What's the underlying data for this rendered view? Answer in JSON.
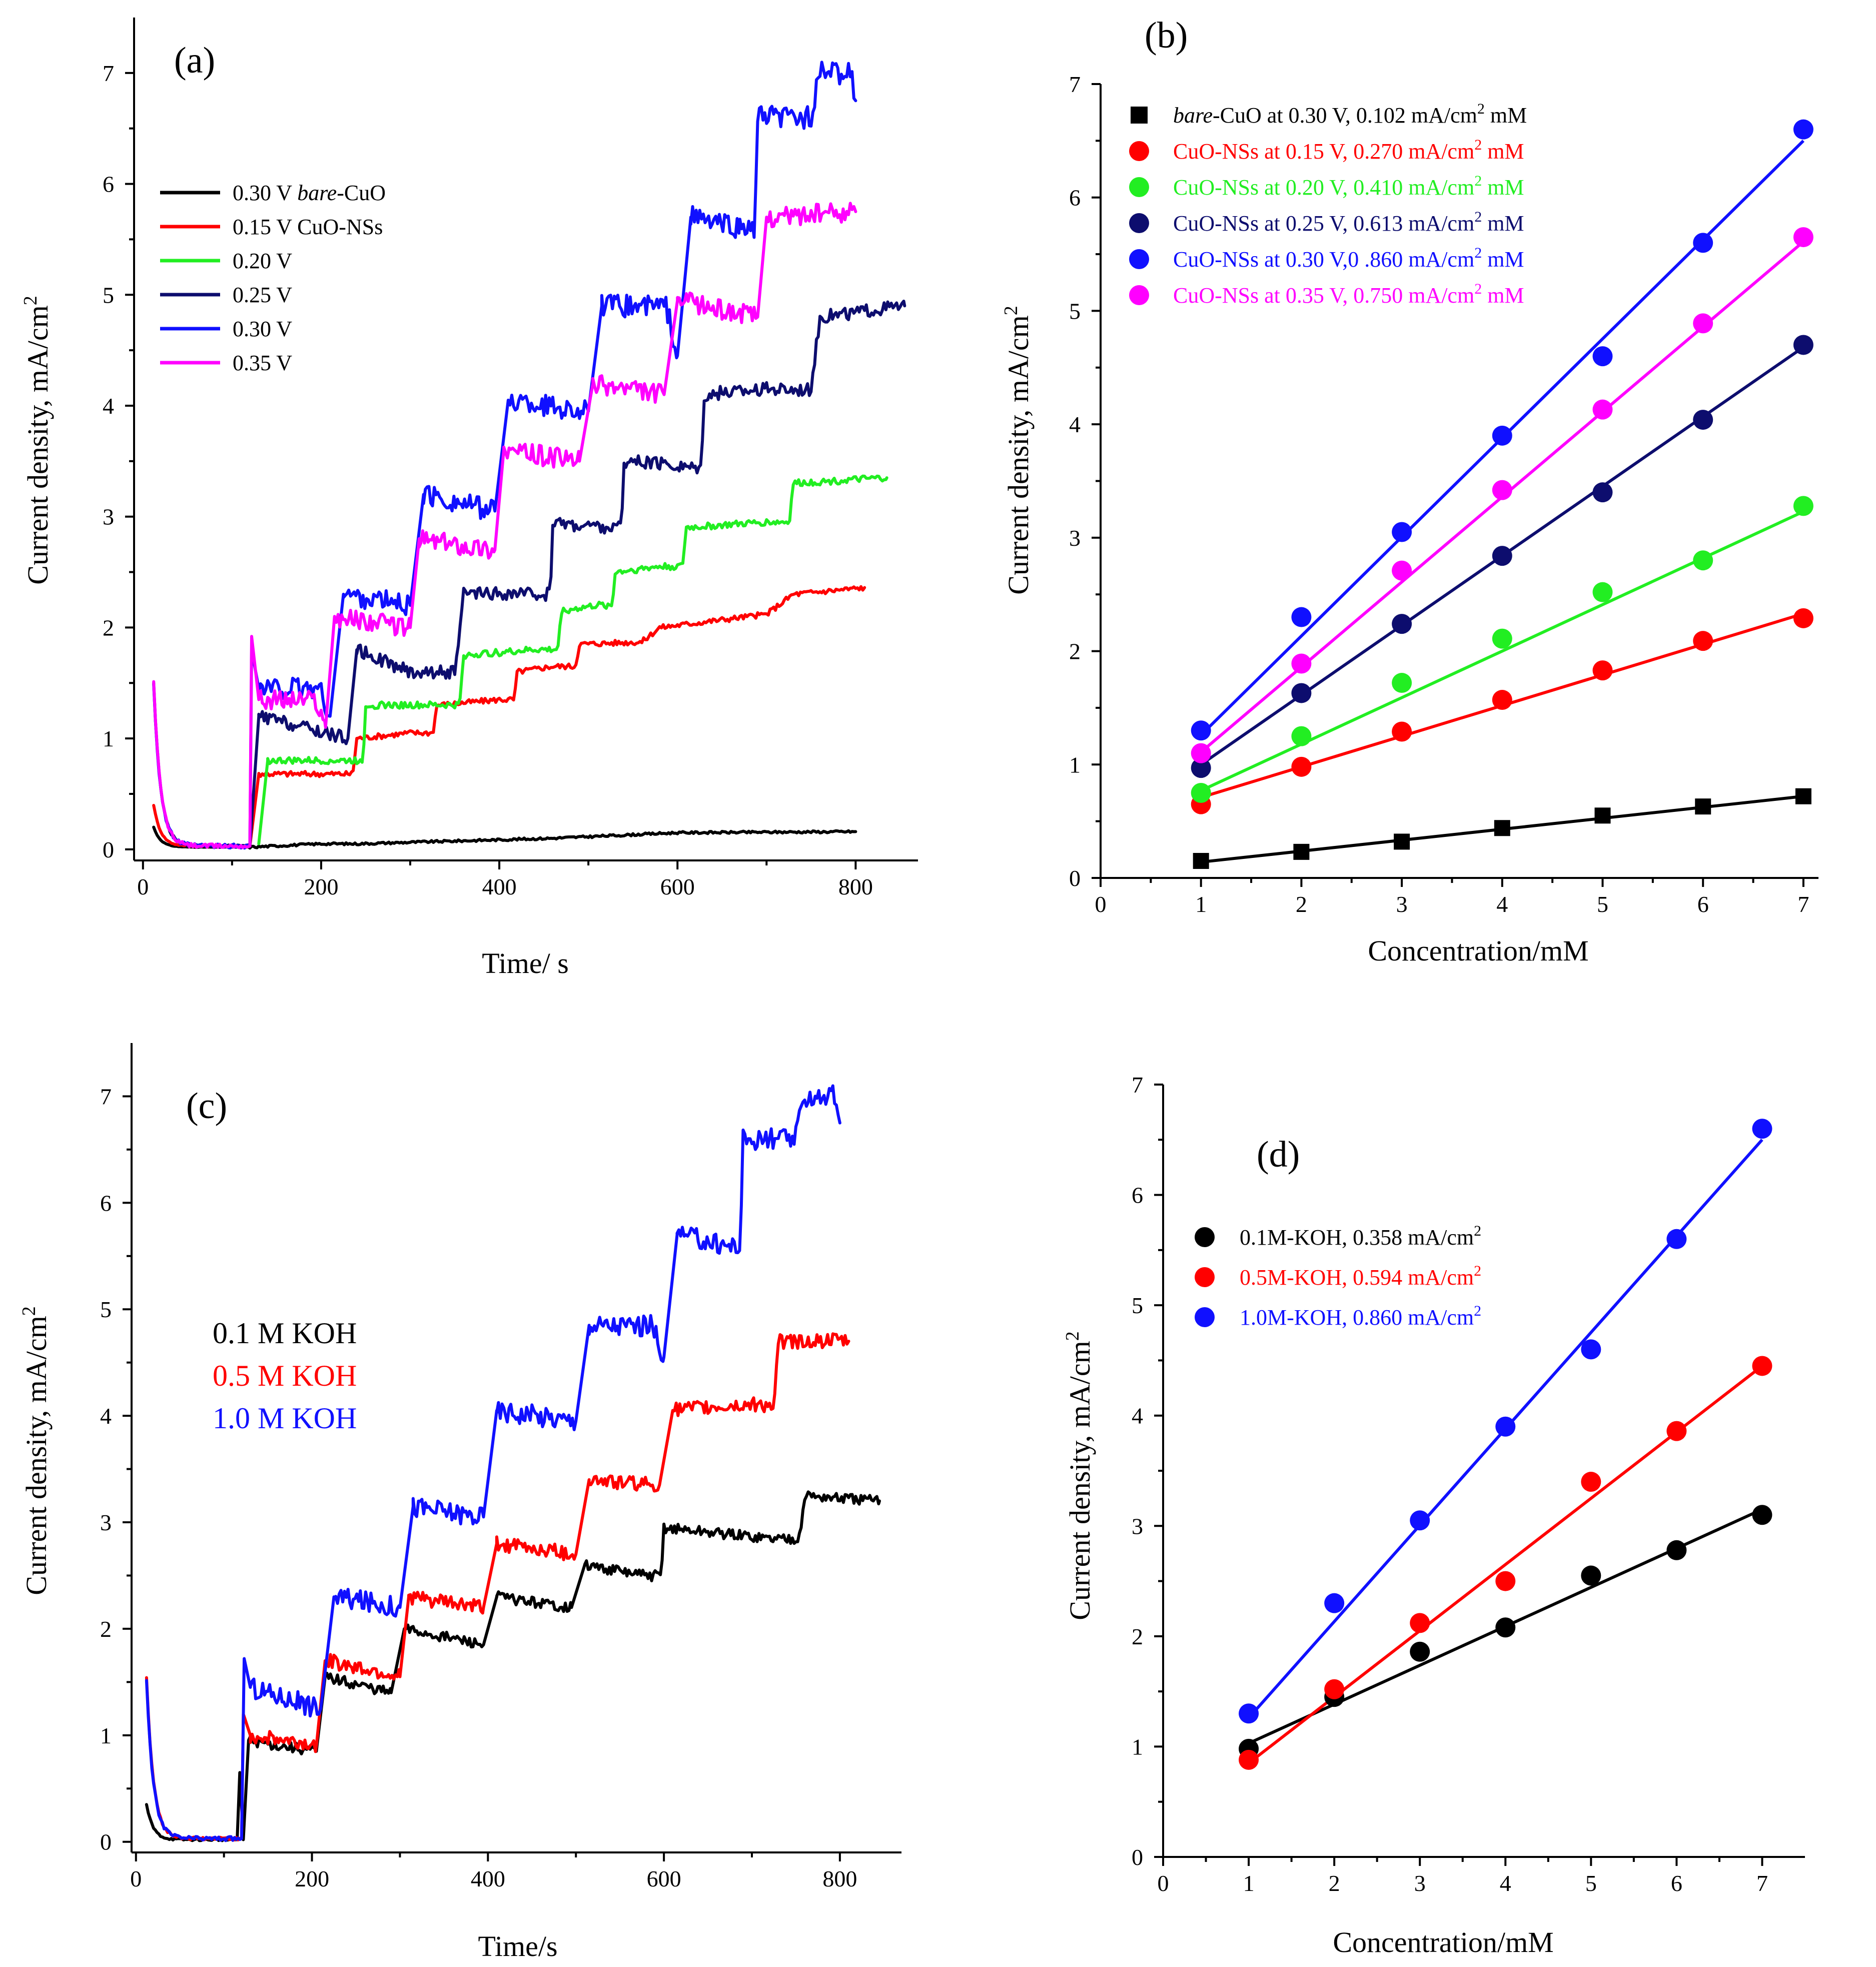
{
  "colors": {
    "black": "#000000",
    "red": "#ff0000",
    "green": "#22ee22",
    "navy": "#0d0d6e",
    "blue": "#1010ff",
    "magenta": "#ff00ff"
  },
  "chart_data": [
    {
      "panel": "(a)",
      "type": "line",
      "xlabel": "Time/ s",
      "ylabel": "Current density, mA/cm",
      "ylabel_sup": "2",
      "xlim": [
        -10,
        870
      ],
      "ylim": [
        -0.1,
        7.5
      ],
      "xticks": [
        0,
        200,
        400,
        600,
        800
      ],
      "yticks": [
        0,
        1,
        2,
        3,
        4,
        5,
        6,
        7
      ],
      "legend_position": "upper-left",
      "legend": [
        {
          "parts": [
            "0.30 V ",
            "bare",
            "-CuO"
          ],
          "color": "black"
        },
        {
          "parts": [
            "0.15 V CuO-NSs",
            "",
            ""
          ],
          "color": "red"
        },
        {
          "parts": [
            "0.20 V",
            "",
            ""
          ],
          "color": "green"
        },
        {
          "parts": [
            "0.25 V",
            "",
            ""
          ],
          "color": "navy"
        },
        {
          "parts": [
            "0.30 V",
            "",
            ""
          ],
          "color": "blue"
        },
        {
          "parts": [
            "0.35 V",
            "",
            ""
          ],
          "color": "magenta"
        }
      ],
      "series": [
        {
          "name": "0.30 V bare-CuO",
          "color": "black",
          "t_start": 12,
          "peak": 0.2,
          "base": 0.02,
          "t_end": 800,
          "noise": 0.01,
          "steps": [
            [
              120,
              0.02
            ],
            [
              200,
              0.05
            ],
            [
              240,
              0.05
            ],
            [
              460,
              0.1
            ],
            [
              600,
              0.15
            ],
            [
              800,
              0.16
            ]
          ]
        },
        {
          "name": "0.15 V CuO-NSs",
          "color": "red",
          "t_start": 12,
          "peak": 0.4,
          "base": 0.03,
          "t_end": 810,
          "noise": 0.025,
          "steps": [
            [
              120,
              0.03
            ],
            [
              130,
              0.68
            ],
            [
              210,
              0.68
            ],
            [
              240,
              1.0
            ],
            [
              300,
              1.05
            ],
            [
              330,
              1.3
            ],
            [
              400,
              1.35
            ],
            [
              420,
              1.6
            ],
            [
              460,
              1.65
            ],
            [
              490,
              1.85
            ],
            [
              560,
              1.87
            ],
            [
              580,
              2.0
            ],
            [
              700,
              2.12
            ],
            [
              730,
              2.3
            ],
            [
              810,
              2.36
            ]
          ]
        },
        {
          "name": "0.20 V",
          "color": "green",
          "t_start": 130,
          "peak": 0.05,
          "base": 0.03,
          "t_end": 835,
          "noise": 0.03,
          "steps": [
            [
              130,
              0.05
            ],
            [
              140,
              0.8
            ],
            [
              230,
              0.8
            ],
            [
              250,
              1.3
            ],
            [
              330,
              1.3
            ],
            [
              360,
              1.75
            ],
            [
              440,
              1.8
            ],
            [
              470,
              2.15
            ],
            [
              510,
              2.2
            ],
            [
              530,
              2.5
            ],
            [
              580,
              2.55
            ],
            [
              610,
              2.9
            ],
            [
              700,
              2.95
            ],
            [
              730,
              3.3
            ],
            [
              835,
              3.35
            ]
          ]
        },
        {
          "name": "0.25 V",
          "color": "navy",
          "t_start": 12,
          "peak": 1.5,
          "base": 0.03,
          "t_end": 855,
          "noise": 0.06,
          "steps": [
            [
              120,
              0.03
            ],
            [
              130,
              1.2
            ],
            [
              230,
              1.0
            ],
            [
              240,
              1.8
            ],
            [
              300,
              1.6
            ],
            [
              360,
              2.3
            ],
            [
              440,
              2.3
            ],
            [
              460,
              2.95
            ],
            [
              520,
              2.9
            ],
            [
              540,
              3.5
            ],
            [
              610,
              3.45
            ],
            [
              630,
              4.1
            ],
            [
              690,
              4.15
            ],
            [
              760,
              4.8
            ],
            [
              855,
              4.9
            ]
          ]
        },
        {
          "name": "0.30 V",
          "color": "blue",
          "t_start": 12,
          "peak": 1.5,
          "base": 0.03,
          "t_end": 800,
          "noise": 0.1,
          "steps": [
            [
              120,
              0.03
            ],
            [
              122,
              1.8
            ],
            [
              130,
              1.45
            ],
            [
              210,
              1.2
            ],
            [
              225,
              2.3
            ],
            [
              300,
              2.2
            ],
            [
              315,
              3.2
            ],
            [
              395,
              3.05
            ],
            [
              410,
              4.05
            ],
            [
              500,
              3.95
            ],
            [
              515,
              4.9
            ],
            [
              600,
              4.45
            ],
            [
              615,
              5.7
            ],
            [
              670,
              5.6
            ],
            [
              690,
              6.6
            ],
            [
              760,
              7.0
            ],
            [
              800,
              6.75
            ]
          ]
        },
        {
          "name": "0.35 V",
          "color": "magenta",
          "t_start": 12,
          "peak": 1.5,
          "base": 0.03,
          "t_end": 800,
          "noise": 0.09,
          "steps": [
            [
              120,
              0.03
            ],
            [
              122,
              1.92
            ],
            [
              130,
              1.35
            ],
            [
              205,
              1.1
            ],
            [
              215,
              2.1
            ],
            [
              300,
              2.0
            ],
            [
              310,
              2.8
            ],
            [
              395,
              2.7
            ],
            [
              405,
              3.6
            ],
            [
              490,
              3.5
            ],
            [
              505,
              4.2
            ],
            [
              585,
              4.1
            ],
            [
              600,
              4.95
            ],
            [
              690,
              4.8
            ],
            [
              700,
              5.7
            ],
            [
              800,
              5.75
            ]
          ]
        }
      ]
    },
    {
      "panel": "(b)",
      "type": "scatter",
      "xlabel": "Concentration/mM",
      "ylabel": "Current density, mA/cm",
      "ylabel_sup": "2",
      "xlim": [
        0,
        7.15
      ],
      "ylim": [
        0,
        7
      ],
      "xticks": [
        0,
        1,
        2,
        3,
        4,
        5,
        6,
        7
      ],
      "yticks": [
        0,
        1,
        2,
        3,
        4,
        5,
        6,
        7
      ],
      "legend_position": "upper-left",
      "legend": [
        {
          "italic": "bare",
          "pre": "",
          "text": "-CuO at 0.30 V, 0.102 mA/cm",
          "sup": "2",
          "post": " mM",
          "color": "black",
          "marker": "square"
        },
        {
          "italic": "",
          "pre": "",
          "text": "CuO-NSs at 0.15 V, 0.270 mA/cm",
          "sup": "2",
          "post": " mM",
          "color": "red",
          "marker": "circle"
        },
        {
          "italic": "",
          "pre": "",
          "text": "CuO-NSs at 0.20 V, 0.410 mA/cm",
          "sup": "2",
          "post": " mM",
          "color": "green",
          "marker": "circle"
        },
        {
          "italic": "",
          "pre": "",
          "text": "CuO-NSs at 0.25 V, 0.613 mA/cm",
          "sup": "2",
          "post": " mM",
          "color": "navy",
          "marker": "circle"
        },
        {
          "italic": "",
          "pre": "",
          "text": "CuO-NSs at 0.30 V,0 .860 mA/cm",
          "sup": "2",
          "post": " mM",
          "color": "blue",
          "marker": "circle"
        },
        {
          "italic": "",
          "pre": "",
          "text": "CuO-NSs at 0.35 V, 0.750 mA/cm",
          "sup": "2",
          "post": " mM",
          "color": "magenta",
          "marker": "circle"
        }
      ],
      "x": [
        1,
        2,
        3,
        4,
        5,
        6,
        7
      ],
      "series": [
        {
          "name": "bare-CuO at 0.30 V",
          "color": "black",
          "marker": "square",
          "values": [
            0.15,
            0.23,
            0.32,
            0.44,
            0.55,
            0.63,
            0.72
          ],
          "fit": [
            0.14,
            0.72
          ]
        },
        {
          "name": "CuO-NSs at 0.15 V",
          "color": "red",
          "marker": "circle",
          "values": [
            0.65,
            0.98,
            1.29,
            1.57,
            1.83,
            2.09,
            2.29
          ],
          "fit": [
            0.71,
            2.33
          ]
        },
        {
          "name": "CuO-NSs at 0.20 V",
          "color": "green",
          "marker": "circle",
          "values": [
            0.75,
            1.25,
            1.72,
            2.11,
            2.52,
            2.8,
            3.28
          ],
          "fit": [
            0.77,
            3.23
          ]
        },
        {
          "name": "CuO-NSs at 0.25 V",
          "color": "navy",
          "marker": "circle",
          "values": [
            0.97,
            1.63,
            2.24,
            2.84,
            3.4,
            4.04,
            4.7
          ],
          "fit": [
            1.0,
            4.68
          ]
        },
        {
          "name": "CuO-NSs at 0.30 V",
          "color": "blue",
          "marker": "circle",
          "values": [
            1.3,
            2.3,
            3.05,
            3.9,
            4.6,
            5.6,
            6.6
          ],
          "fit": [
            1.26,
            6.5
          ]
        },
        {
          "name": "CuO-NSs at 0.35 V",
          "color": "magenta",
          "marker": "circle",
          "values": [
            1.1,
            1.89,
            2.71,
            3.42,
            4.13,
            4.89,
            5.65
          ],
          "fit": [
            1.11,
            5.61
          ]
        }
      ]
    },
    {
      "panel": "(c)",
      "type": "line",
      "xlabel": "Time/s",
      "ylabel": "Current density, mA/cm",
      "ylabel_sup": "2",
      "xlim": [
        -5,
        870
      ],
      "ylim": [
        -0.1,
        7.5
      ],
      "xticks": [
        0,
        200,
        400,
        600,
        800
      ],
      "yticks": [
        0,
        1,
        2,
        3,
        4,
        5,
        6,
        7
      ],
      "legend_position": "middle-left",
      "legend": [
        {
          "text": "0.1 M KOH",
          "color": "black"
        },
        {
          "text": "0.5 M KOH",
          "color": "red"
        },
        {
          "text": "1.0 M KOH",
          "color": "blue"
        }
      ],
      "series": [
        {
          "name": "0.1 M KOH",
          "color": "black",
          "t_start": 12,
          "peak": 0.35,
          "base": 0.02,
          "t_end": 845,
          "noise": 0.05,
          "steps": [
            [
              115,
              0.02
            ],
            [
              118,
              0.65
            ],
            [
              122,
              0.02
            ],
            [
              128,
              0.95
            ],
            [
              205,
              0.85
            ],
            [
              215,
              1.55
            ],
            [
              290,
              1.4
            ],
            [
              305,
              2.0
            ],
            [
              395,
              1.85
            ],
            [
              410,
              2.3
            ],
            [
              495,
              2.2
            ],
            [
              510,
              2.6
            ],
            [
              580,
              2.5
            ],
            [
              600,
              2.95
            ],
            [
              720,
              2.85
            ],
            [
              760,
              3.25
            ],
            [
              845,
              3.2
            ]
          ]
        },
        {
          "name": "0.5 M KOH",
          "color": "red",
          "t_start": 12,
          "peak": 1.55,
          "base": 0.03,
          "t_end": 810,
          "noise": 0.07,
          "steps": [
            [
              120,
              0.03
            ],
            [
              122,
              1.2
            ],
            [
              130,
              1.0
            ],
            [
              205,
              0.9
            ],
            [
              215,
              1.7
            ],
            [
              300,
              1.55
            ],
            [
              310,
              2.3
            ],
            [
              395,
              2.2
            ],
            [
              410,
              2.8
            ],
            [
              500,
              2.7
            ],
            [
              515,
              3.4
            ],
            [
              595,
              3.35
            ],
            [
              610,
              4.05
            ],
            [
              700,
              4.1
            ],
            [
              730,
              4.7
            ],
            [
              810,
              4.7
            ]
          ]
        },
        {
          "name": "1.0 M KOH",
          "color": "blue",
          "t_start": 12,
          "peak": 1.5,
          "base": 0.03,
          "t_end": 800,
          "noise": 0.1,
          "steps": [
            [
              120,
              0.03
            ],
            [
              123,
              1.72
            ],
            [
              130,
              1.45
            ],
            [
              210,
              1.25
            ],
            [
              225,
              2.3
            ],
            [
              300,
              2.2
            ],
            [
              315,
              3.15
            ],
            [
              395,
              3.05
            ],
            [
              410,
              4.05
            ],
            [
              500,
              3.95
            ],
            [
              515,
              4.85
            ],
            [
              600,
              4.55
            ],
            [
              615,
              5.7
            ],
            [
              670,
              5.6
            ],
            [
              690,
              6.6
            ],
            [
              760,
              7.0
            ],
            [
              800,
              6.75
            ]
          ]
        }
      ]
    },
    {
      "panel": "(d)",
      "type": "scatter",
      "xlabel": "Concentration/mM",
      "ylabel": "Current density, mA/cm",
      "ylabel_sup": "2",
      "xlim": [
        0,
        7.5
      ],
      "ylim": [
        0,
        7
      ],
      "xticks": [
        0,
        1,
        2,
        3,
        4,
        5,
        6,
        7
      ],
      "yticks": [
        0,
        1,
        2,
        3,
        4,
        5,
        6,
        7
      ],
      "legend_position": "upper-left",
      "legend": [
        {
          "text": "0.1M-KOH, 0.358 mA/cm",
          "sup": "2",
          "color": "black"
        },
        {
          "text": "0.5M-KOH, 0.594 mA/cm",
          "sup": "2",
          "color": "red"
        },
        {
          "text": "1.0M-KOH, 0.860 mA/cm",
          "sup": "2",
          "color": "blue"
        }
      ],
      "x": [
        1,
        2,
        3,
        4,
        5,
        6,
        7
      ],
      "series": [
        {
          "name": "0.1M-KOH",
          "color": "black",
          "values": [
            0.98,
            1.45,
            1.86,
            2.08,
            2.55,
            2.78,
            3.1
          ],
          "fit": [
            1.03,
            3.15
          ]
        },
        {
          "name": "0.5M-KOH",
          "color": "red",
          "values": [
            0.88,
            1.52,
            2.12,
            2.5,
            3.4,
            3.86,
            4.45
          ],
          "fit": [
            0.85,
            4.45
          ]
        },
        {
          "name": "1.0M-KOH",
          "color": "blue",
          "values": [
            1.3,
            2.3,
            3.05,
            3.9,
            4.6,
            5.6,
            6.6
          ],
          "fit": [
            1.26,
            6.5
          ]
        }
      ]
    }
  ]
}
